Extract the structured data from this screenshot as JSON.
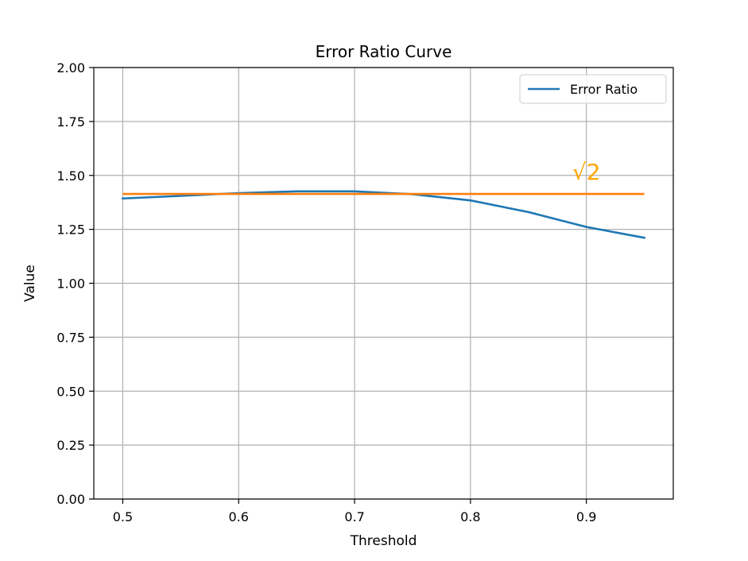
{
  "chart_data": {
    "type": "line",
    "title": "Error Ratio Curve",
    "xlabel": "Threshold",
    "ylabel": "Value",
    "xlim": [
      0.475,
      0.975
    ],
    "ylim": [
      0,
      2.0
    ],
    "xticks": [
      0.5,
      0.6,
      0.7,
      0.8,
      0.9
    ],
    "xtick_labels": [
      "0.5",
      "0.6",
      "0.7",
      "0.8",
      "0.9"
    ],
    "yticks": [
      0,
      0.25,
      0.5,
      0.75,
      1.0,
      1.25,
      1.5,
      1.75,
      2.0
    ],
    "ytick_labels": [
      "0.00",
      "0.25",
      "0.50",
      "0.75",
      "1.00",
      "1.25",
      "1.50",
      "1.75",
      "2.00"
    ],
    "grid": true,
    "legend_position": "top-right",
    "series": [
      {
        "name": "Error Ratio",
        "color": "#1f77b4",
        "x": [
          0.5,
          0.55,
          0.6,
          0.65,
          0.7,
          0.75,
          0.8,
          0.85,
          0.9,
          0.95
        ],
        "y": [
          1.393,
          1.405,
          1.418,
          1.426,
          1.426,
          1.413,
          1.384,
          1.33,
          1.261,
          1.211
        ]
      }
    ],
    "reference_line": {
      "value": 1.414,
      "x_start": 0.5,
      "x_end": 0.95,
      "color": "#ff7f0e"
    },
    "annotations": [
      {
        "text": "√2",
        "x": 0.9,
        "y": 1.48,
        "color": "#ffa500"
      }
    ]
  }
}
